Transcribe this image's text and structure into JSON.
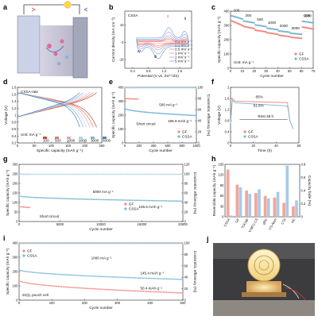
{
  "colors": {
    "gf": "#f08a80",
    "cssa": "#79b7d8",
    "ce_gf": "#f6b7ae",
    "ce_cssa": "#a9d2e8",
    "frame": "#222222"
  },
  "panels": {
    "a": {
      "label": "a"
    },
    "b": {
      "label": "b"
    },
    "c": {
      "label": "c"
    },
    "d": {
      "label": "d"
    },
    "e": {
      "label": "e"
    },
    "f": {
      "label": "f"
    },
    "g": {
      "label": "g"
    },
    "h": {
      "label": "h"
    },
    "i": {
      "label": "i"
    },
    "j": {
      "label": "j"
    }
  },
  "chart_data": [
    {
      "id": "b",
      "type": "line",
      "title": "CSSA",
      "xlabel": "Potential (V vs. Zn²⁺/Zn)",
      "ylabel": "Current density (mA cm⁻²)",
      "xlim": [
        0.2,
        1.9
      ],
      "ylim": [
        -15,
        18
      ],
      "xticks": [
        0.4,
        0.8,
        1.2,
        1.6
      ],
      "yticks": [
        -10,
        0,
        10
      ],
      "peak_labels": [
        "Ⅰ",
        "Ⅱ",
        "Ⅲ",
        "Ⅳ"
      ],
      "series": [
        {
          "name": "0.1 mV s⁻¹",
          "scale": 0.08
        },
        {
          "name": "0.3 mV s⁻¹",
          "scale": 0.2
        },
        {
          "name": "0.5 mV s⁻¹",
          "scale": 0.3
        },
        {
          "name": "1 mV s⁻¹",
          "scale": 0.45
        },
        {
          "name": "2 mV s⁻¹",
          "scale": 0.7
        },
        {
          "name": "5 mV s⁻¹",
          "scale": 1.0
        }
      ]
    },
    {
      "id": "c",
      "type": "scatter",
      "xlabel": "Cycle number",
      "ylabel": "Specific capacity (mAh g⁻¹)",
      "xlim": [
        0,
        70
      ],
      "ylim": [
        0,
        400
      ],
      "xticks": [
        0,
        10,
        20,
        30,
        40,
        50,
        60,
        70
      ],
      "yticks": [
        0,
        100,
        200,
        300,
        400
      ],
      "unit_note": "Unit: mA g⁻¹",
      "rate_labels": [
        "100",
        "200",
        "500",
        "1000",
        "2000",
        "3000",
        "5000",
        "100"
      ],
      "series": [
        {
          "name": "GF",
          "segments": [
            [
              0,
              10,
              335,
              300
            ],
            [
              10,
              20,
              295,
              278
            ],
            [
              20,
              30,
              268,
              255
            ],
            [
              30,
              40,
              250,
              238
            ],
            [
              40,
              50,
              232,
              222
            ],
            [
              50,
              60,
              218,
              210
            ],
            [
              60,
              70,
              290,
              275
            ]
          ]
        },
        {
          "name": "CSSA",
          "segments": [
            [
              0,
              10,
              370,
              345
            ],
            [
              10,
              20,
              332,
              318
            ],
            [
              20,
              30,
              305,
              292
            ],
            [
              30,
              40,
              282,
              270
            ],
            [
              40,
              50,
              262,
              252
            ],
            [
              50,
              60,
              245,
              238
            ],
            [
              60,
              70,
              330,
              318
            ]
          ]
        }
      ]
    },
    {
      "id": "d",
      "type": "line",
      "title": "CSSA-rate",
      "xlabel": "Specific capacity (mAh g⁻¹)",
      "ylabel": "Voltage (V)",
      "xlim": [
        0,
        250
      ],
      "ylim": [
        0.2,
        1.8
      ],
      "xticks": [
        0,
        50,
        100,
        150,
        200,
        250
      ],
      "yticks": [
        0.2,
        0.4,
        0.6,
        0.8,
        1.0,
        1.2,
        1.4,
        1.6,
        1.8
      ],
      "unit_note": "Unit: mA g⁻¹",
      "series": [
        {
          "name": "100",
          "capacity": 235,
          "color": "#c34a3a"
        },
        {
          "name": "500",
          "capacity": 225,
          "color": "#e07b6e"
        },
        {
          "name": "1000",
          "capacity": 215,
          "color": "#f2a296"
        },
        {
          "name": "2000",
          "capacity": 205,
          "color": "#b9d6ea"
        },
        {
          "name": "3000",
          "capacity": 195,
          "color": "#7fb3d8"
        },
        {
          "name": "5000",
          "capacity": 185,
          "color": "#4a86c2"
        }
      ]
    },
    {
      "id": "e",
      "type": "scatter",
      "xlabel": "Cycle number",
      "ylabel": "Specific capacity (mAh g⁻¹)",
      "ylabel2": "Coulombic efficiency (%)",
      "xlim": [
        0,
        1000
      ],
      "ylim": [
        0,
        400
      ],
      "y2lim": [
        0,
        100
      ],
      "xticks": [
        0,
        200,
        400,
        600,
        800,
        1000
      ],
      "yticks": [
        0,
        100,
        200,
        300,
        400
      ],
      "y2ticks": [
        0,
        20,
        40,
        60,
        80,
        100
      ],
      "annotations": {
        "rate": "500 mA g⁻¹",
        "value": "196.9 mAh g⁻¹",
        "short": "Short circuit"
      },
      "series": [
        {
          "name": "GF",
          "start": 320,
          "end": 310,
          "short_circuit_cycle": 190
        },
        {
          "name": "CSSA",
          "start": 250,
          "end": 197
        }
      ]
    },
    {
      "id": "f",
      "type": "line",
      "xlabel": "Time (h)",
      "ylabel": "Voltage (V)",
      "xlim": [
        0,
        60
      ],
      "ylim": [
        0.0,
        2.0
      ],
      "xticks": [
        0,
        20,
        40,
        60
      ],
      "yticks": [
        0.0,
        0.4,
        0.8,
        1.2,
        1.6,
        2.0
      ],
      "annotations": {
        "gf_ce": "85%",
        "cssa_ce": "91.6%",
        "rest": "Rest 48 h"
      },
      "series": [
        {
          "name": "GF"
        },
        {
          "name": "CSSA"
        }
      ]
    },
    {
      "id": "g",
      "type": "scatter",
      "xlabel": "Cycle number",
      "ylabel": "Specific capacity (mAh g⁻¹)",
      "ylabel2": "Coulombic efficiency (%)",
      "xlim": [
        0,
        20000
      ],
      "ylim": [
        0,
        300
      ],
      "y2lim": [
        0,
        120
      ],
      "xticks": [
        0,
        5000,
        10000,
        15000,
        20000
      ],
      "yticks": [
        0,
        50,
        100,
        150,
        200,
        250,
        300
      ],
      "y2ticks": [
        0,
        20,
        40,
        60,
        80,
        100,
        120
      ],
      "annotations": {
        "rate": "5000 mA g⁻¹",
        "value": "106.6 mAh g⁻¹",
        "short": "Short circuit"
      },
      "series": [
        {
          "name": "GF",
          "start": 80,
          "end": 55,
          "short_circuit_cycle": 1400
        },
        {
          "name": "CSSA",
          "start": 135,
          "end": 107
        }
      ]
    },
    {
      "id": "h",
      "type": "bar",
      "ylabel": "Reversible capacity (mAh g⁻¹)",
      "ylabel2": "Capacity fade (%)",
      "ylim": [
        0,
        150
      ],
      "y2lim": [
        0,
        0.8
      ],
      "yticks": [
        0,
        30,
        60,
        90,
        120,
        150
      ],
      "y2ticks": [
        0.0,
        0.2,
        0.4,
        0.6,
        0.8
      ],
      "categories": [
        "CSSA",
        "GF",
        "TOCNF",
        "V-NFC-CS",
        "gBC",
        "CS-Nam",
        "CTA",
        "HC"
      ],
      "series": [
        {
          "name": "Reversible capacity",
          "values": [
            135,
            92,
            75,
            68,
            60,
            55,
            40,
            30
          ]
        },
        {
          "name": "Capacity fade",
          "values": [
            0.02,
            0.45,
            0.35,
            0.42,
            0.28,
            0.38,
            0.78,
            0.25
          ]
        }
      ]
    },
    {
      "id": "i",
      "type": "scatter",
      "xlabel": "Cycle number",
      "ylabel": "Specific capacity (mAh g⁻¹)",
      "ylabel2": "Coulombic efficiency (%)",
      "xlim": [
        0,
        500
      ],
      "ylim": [
        0,
        400
      ],
      "y2lim": [
        0,
        100
      ],
      "xticks": [
        0,
        100,
        200,
        300,
        400,
        500
      ],
      "yticks": [
        0,
        100,
        200,
        300,
        400
      ],
      "y2ticks": [
        0,
        20,
        40,
        60,
        80,
        100
      ],
      "annotations": {
        "rate": "1000 mA g⁻¹",
        "cssa_value": "145.4 mAh g⁻¹",
        "gf_value": "50.4 mAh g⁻¹",
        "cell": "Zn||I₂ pouch cell"
      },
      "series": [
        {
          "name": "GF",
          "start": 140,
          "end": 50
        },
        {
          "name": "CSSA",
          "start": 215,
          "end": 145
        }
      ]
    }
  ]
}
